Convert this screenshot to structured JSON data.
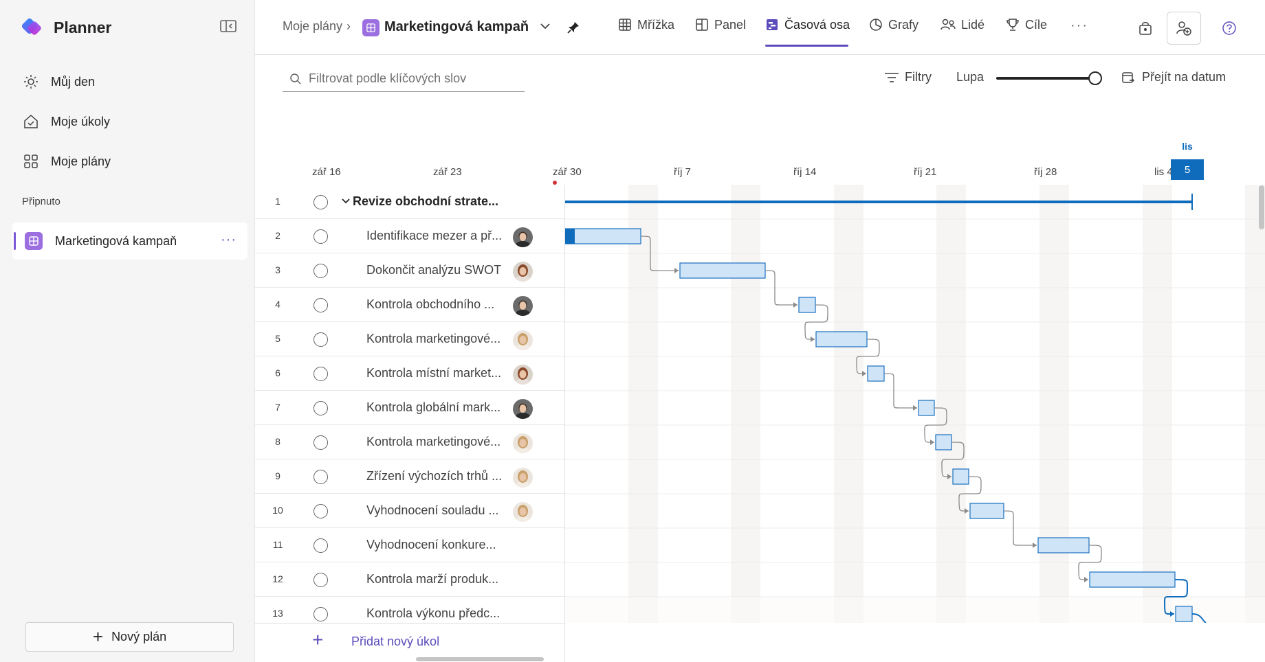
{
  "app": {
    "name": "Planner",
    "nav": [
      {
        "id": "my-day",
        "label": "Můj den",
        "icon": "sun-icon"
      },
      {
        "id": "my-tasks",
        "label": "Moje úkoly",
        "icon": "home-check-icon"
      },
      {
        "id": "my-plans",
        "label": "Moje plány",
        "icon": "grid-icon"
      }
    ],
    "pinned_header": "Připnuto",
    "pinned_plan": "Marketingová kampaň",
    "new_plan": "Nový plán"
  },
  "header": {
    "breadcrumb_root": "Moje plány",
    "plan_title": "Marketingová kampaň",
    "tabs": [
      {
        "id": "grid",
        "label": "Mřížka",
        "icon": "table-icon"
      },
      {
        "id": "board",
        "label": "Panel",
        "icon": "board-icon"
      },
      {
        "id": "timeline",
        "label": "Časová osa",
        "icon": "timeline-icon",
        "active": true
      },
      {
        "id": "charts",
        "label": "Grafy",
        "icon": "chart-icon"
      },
      {
        "id": "people",
        "label": "Lidé",
        "icon": "people-icon"
      },
      {
        "id": "goals",
        "label": "Cíle",
        "icon": "trophy-icon"
      }
    ],
    "more": "···"
  },
  "toolbar": {
    "search_placeholder": "Filtrovat podle klíčových slov",
    "filters": "Filtry",
    "zoom": "Lupa",
    "goto_date": "Přejít na datum"
  },
  "timeline": {
    "dates": [
      "zář 16",
      "zář 23",
      "zář 30",
      "říj 7",
      "říj 14",
      "říj 21",
      "říj 28",
      "lis 4"
    ],
    "today_month": "lis",
    "today_day": "5"
  },
  "tasks": [
    {
      "num": "1",
      "title": "Revize obchodní strate...",
      "group": true,
      "avatar": ""
    },
    {
      "num": "2",
      "title": "Identifikace mezer a př...",
      "avatar": "man"
    },
    {
      "num": "3",
      "title": "Dokončit analýzu SWOT",
      "avatar": "woman-red"
    },
    {
      "num": "4",
      "title": "Kontrola obchodního ...",
      "avatar": "man"
    },
    {
      "num": "5",
      "title": "Kontrola marketingové...",
      "avatar": "woman-blonde"
    },
    {
      "num": "6",
      "title": "Kontrola místní market...",
      "avatar": "woman-red"
    },
    {
      "num": "7",
      "title": "Kontrola globální mark...",
      "avatar": "man"
    },
    {
      "num": "8",
      "title": "Kontrola marketingové...",
      "avatar": "woman-blonde"
    },
    {
      "num": "9",
      "title": "Zřízení výchozích trhů ...",
      "avatar": "woman-blonde"
    },
    {
      "num": "10",
      "title": "Vyhodnocení souladu ...",
      "avatar": "woman-blonde"
    },
    {
      "num": "11",
      "title": "Vyhodnocení konkure...",
      "avatar": ""
    },
    {
      "num": "12",
      "title": "Kontrola marží produk...",
      "avatar": ""
    },
    {
      "num": "13",
      "title": "Kontrola výkonu předc...",
      "avatar": ""
    }
  ],
  "add_task": "Přidat nový úkol",
  "colors": {
    "accent": "#5b4dbb",
    "bar_fill": "#cfe4f7",
    "bar_border": "#1a70c0",
    "summary": "#0f6cbd"
  }
}
